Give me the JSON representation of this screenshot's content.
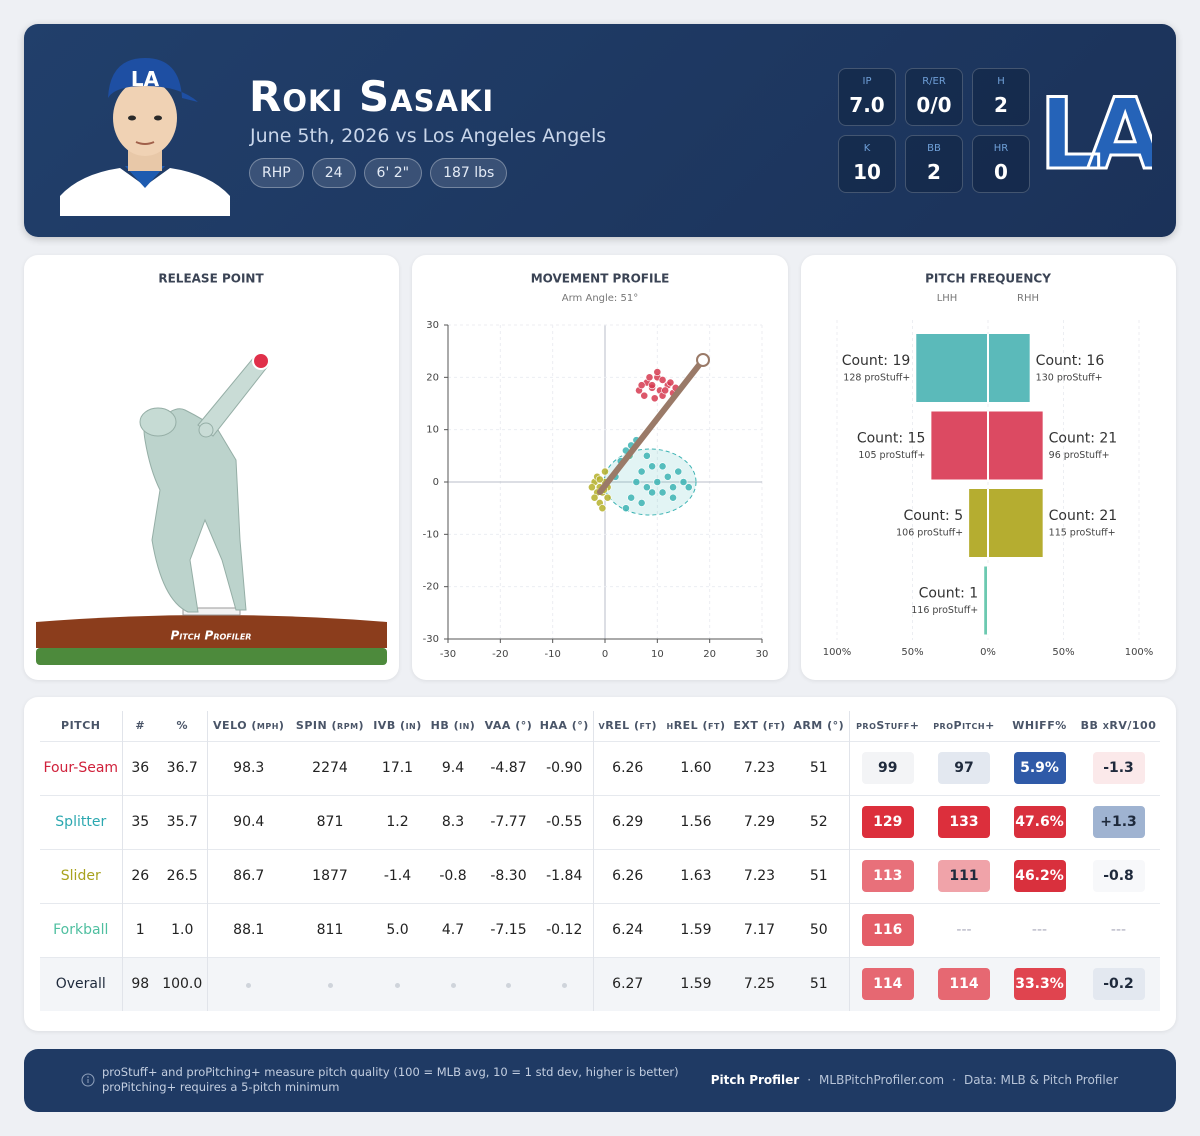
{
  "header": {
    "name": "Roki Sasaki",
    "subtitle": "June 5th, 2026 vs Los Angeles Angels",
    "chips": [
      "RHP",
      "24",
      "6' 2\"",
      "187 lbs"
    ],
    "stats": [
      {
        "label": "IP",
        "value": "7.0"
      },
      {
        "label": "R/ER",
        "value": "0/0"
      },
      {
        "label": "H",
        "value": "2"
      },
      {
        "label": "K",
        "value": "10"
      },
      {
        "label": "BB",
        "value": "2"
      },
      {
        "label": "HR",
        "value": "0"
      }
    ],
    "logo": "LA"
  },
  "release_point": {
    "title": "RELEASE POINT",
    "brand": "Pitch Profiler"
  },
  "chart_data": [
    {
      "type": "scatter",
      "title": "MOVEMENT PROFILE",
      "subtitle": "Arm Angle: 51°",
      "xlim": [
        -30,
        30
      ],
      "ylim": [
        -30,
        30
      ],
      "xticks": [
        -30,
        -20,
        -10,
        0,
        10,
        20,
        30
      ],
      "yticks": [
        -30,
        -20,
        -10,
        0,
        10,
        20,
        30
      ],
      "grid": true,
      "series": [
        {
          "color": "#d63a50",
          "x": [
            6.5,
            8,
            9,
            10,
            11,
            12,
            13,
            7.5,
            9.5,
            10.5,
            12.5,
            8.5,
            11,
            9,
            10,
            13.5,
            7,
            11.5
          ],
          "y": [
            17.5,
            19,
            18,
            20,
            19.5,
            18.5,
            17,
            16.5,
            16,
            17.5,
            19,
            20,
            16.5,
            18.5,
            21,
            18,
            18.5,
            17.5
          ]
        },
        {
          "color": "#3cb3b3",
          "x": [
            2,
            3,
            4,
            5,
            6,
            7,
            8,
            9,
            10,
            11,
            12,
            13,
            14,
            15,
            16,
            5,
            7,
            9,
            11,
            13,
            4,
            6,
            8
          ],
          "y": [
            1,
            4,
            6,
            7,
            8,
            2,
            -1,
            3,
            0,
            -2,
            1,
            -1,
            2,
            0,
            -1,
            -3,
            -4,
            -2,
            3,
            -3,
            -5,
            0,
            5
          ]
        },
        {
          "color": "#b5b02a",
          "x": [
            -2,
            -1.5,
            -1,
            -0.5,
            0,
            0.5,
            -2.5,
            -1,
            0,
            -1.5,
            -0.5,
            0.5,
            -1,
            -2,
            -0.2
          ],
          "y": [
            0,
            1,
            -1,
            -2,
            0,
            -3,
            -1,
            -4,
            2,
            -2,
            -5,
            -1,
            0.5,
            -3,
            -1.5
          ]
        },
        {
          "color": "#4fbfa0",
          "x": [
            4.7
          ],
          "y": [
            5.0
          ]
        }
      ]
    },
    {
      "type": "butterfly",
      "title": "PITCH FREQUENCY",
      "categories": [
        null,
        null,
        null,
        null
      ],
      "colors": [
        "#5bbaba",
        "#dc4a62",
        "#b5ad30",
        "#6cc9b0"
      ],
      "xlim": [
        -100,
        100
      ],
      "xticks": [
        {
          "value": -100,
          "label": "100%"
        },
        {
          "value": -50,
          "label": "50%"
        },
        {
          "value": 0,
          "label": "0%"
        },
        {
          "value": 50,
          "label": "50%"
        },
        {
          "value": 100,
          "label": "100%"
        }
      ],
      "grid": true,
      "series": [
        {
          "name": "LHH",
          "side": "left",
          "values": [
            47.5,
            37.5,
            12.5,
            2.5
          ],
          "count_labels": [
            "Count: 19",
            "Count: 15",
            "Count: 5",
            "Count: 1"
          ],
          "stuff_labels": [
            "128 proStuff+",
            "105 proStuff+",
            "106 proStuff+",
            "116 proStuff+"
          ]
        },
        {
          "name": "RHH",
          "side": "right",
          "values": [
            27.6,
            36.2,
            36.2,
            null
          ],
          "count_labels": [
            "Count: 16",
            "Count: 21",
            "Count: 21",
            null
          ],
          "stuff_labels": [
            "130 proStuff+",
            "96 proStuff+",
            "115 proStuff+",
            null
          ]
        }
      ]
    }
  ],
  "table": {
    "columns": [
      "PITCH",
      "#",
      "%",
      "VELO (mph)",
      "SPIN (rpm)",
      "IVB (in)",
      "HB (in)",
      "VAA (°)",
      "HAA (°)",
      "vREL (ft)",
      "hREL (ft)",
      "EXT (ft)",
      "ARM (°)",
      "proStuff+",
      "proPitch+",
      "WHIFF%",
      "BB xRV/100"
    ],
    "rows": [
      {
        "pitch_color": "#d0213b",
        "badge_colors": [
          "#f3f4f6",
          "#e3e8f0",
          "#2f5aa8",
          "#fbe9ea"
        ],
        "cells": [
          "Four-Seam",
          "36",
          "36.7",
          "98.3",
          "2274",
          "17.1",
          "9.4",
          "-4.87",
          "-0.90",
          "6.26",
          "1.60",
          "7.23",
          "51",
          "99",
          "97",
          "5.9%",
          "-1.3"
        ]
      },
      {
        "pitch_color": "#2ca8b0",
        "badge_colors": [
          "#dc2f3c",
          "#dc2f3c",
          "#d9303d",
          "#9fb3d1"
        ],
        "cells": [
          "Splitter",
          "35",
          "35.7",
          "90.4",
          "871",
          "1.2",
          "8.3",
          "-7.77",
          "-0.55",
          "6.29",
          "1.56",
          "7.29",
          "52",
          "129",
          "133",
          "47.6%",
          "+1.3"
        ]
      },
      {
        "pitch_color": "#a8a21e",
        "badge_colors": [
          "#e8707a",
          "#f0a3a9",
          "#d9303d",
          "#f7f8fa"
        ],
        "cells": [
          "Slider",
          "26",
          "26.5",
          "86.7",
          "1877",
          "-1.4",
          "-0.8",
          "-8.30",
          "-1.84",
          "6.26",
          "1.63",
          "7.23",
          "51",
          "113",
          "111",
          "46.2%",
          "-0.8"
        ]
      },
      {
        "pitch_color": "#4fbfa0",
        "badge_colors": [
          "#e45e68",
          null,
          null,
          null
        ],
        "cells": [
          "Forkball",
          "1",
          "1.0",
          "88.1",
          "811",
          "5.0",
          "4.7",
          "-7.15",
          "-0.12",
          "6.24",
          "1.59",
          "7.17",
          "50",
          "116",
          "---",
          "---",
          "---"
        ]
      },
      {
        "pitch_color": "#1f2a3c",
        "badge_colors": [
          "#e66872",
          "#e66872",
          "#e0444f",
          "#e3e8f0"
        ],
        "cells": [
          "Overall",
          "98",
          "100.0",
          null,
          null,
          null,
          null,
          null,
          null,
          "6.27",
          "1.59",
          "7.25",
          "51",
          "114",
          "114",
          "33.3%",
          "-0.2"
        ]
      }
    ]
  },
  "footer": {
    "notes": [
      "proStuff+ and proPitching+ measure pitch quality (100 = MLB avg, 10 = 1 std dev, higher is better)",
      "proPitching+ requires a 5-pitch minimum"
    ],
    "links": [
      "Pitch Profiler",
      "MLBPitchProfiler.com",
      "Data: MLB & Pitch Profiler"
    ]
  }
}
